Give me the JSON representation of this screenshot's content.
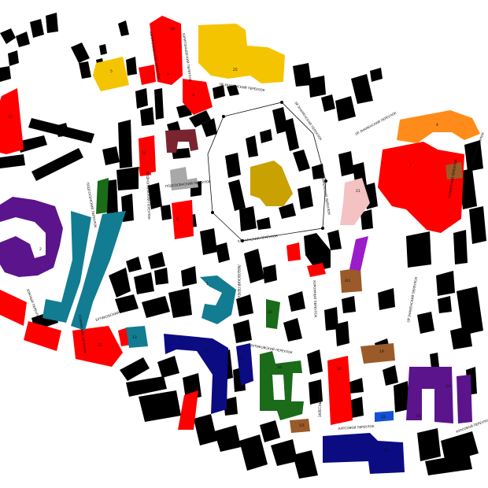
{
  "colors": {
    "residential": "#000000",
    "red": "#ff0000",
    "yellow": "#f5c400",
    "purple": "#5b148c",
    "teal": "#127c92",
    "navy": "#0b0b82",
    "green": "#1a6b1a",
    "orange": "#ff8c1a",
    "brown": "#9a5a2a",
    "maroon": "#7a2430",
    "gold": "#c9a100",
    "gray": "#a8a8a8",
    "pink": "#f4c2c2",
    "violet": "#9b1cc9",
    "blue": "#1450d2"
  },
  "streets": {
    "s1": "ХАРИТОНЬЕВСКИЙ ПЕРЕУЛОК",
    "s2": "ХАРИТОНЬЕВСКИЙ ПЕРЕУЛОК",
    "s3": "3Й ЗНАМЕНСКИЙ ПЕРЕУЛОК",
    "s4": "3Й ЗНАМЕНСКИЙ ПЕРЕУЛОК",
    "s5": "2Й ЗНАМЕНСКИЙ ПЕРЕУЛОК",
    "s6": "ЗНАМЕНСКИЙ ПЕРЕУЛОК",
    "s7": "ПОДКОПАЕВСКИЙ ПЕРЕУЛОК",
    "s8": "ПОДСОСЕНСКИЙ ПЕРЕУЛОК",
    "s9": "ПОДСОСЕНСКИЙ ПЕРЕУЛОК",
    "s10": "ЛЮБОВСКИЙ ПЕРЕУЛОК",
    "s11": "ХАРЧИНСКИЙ ПЕРЕУЛОК",
    "s12": "ХОРОМНЫЙ ПЕРЕУЛОК",
    "s13": "2Й ЗНАМЕНСКИЙ ПЕРЕУЛОК",
    "s14": "БУТИКОВСКИЙ ПЕРЕУЛОК",
    "s15": "СОФИЙСКИЙ ПЕРЕУЛОК",
    "s16": "БУТИКОВСКИЙ ПЕРЕУЛОК",
    "s17": "ЮЖНЫЙ ПЕРЕУЛОК",
    "s18": "КУРСОВОЙ ПЕРЕУЛОК",
    "s19": "КУРСОВОЙ ПЕРЕУЛОК",
    "s20": "ПОЖАРСКИЙ ПЕРЕУЛОК",
    "s21": "ПОЖАРСКИЙ ПЕРЕУЛОК",
    "s22": "ЗАЛЕСНЫЙ ПЕРЕУЛОК"
  },
  "labels": {
    "b1": "25",
    "b2": "5",
    "b3": "12",
    "b4": "18",
    "b5": "9",
    "b6": "3",
    "b7": "14",
    "b8": "17",
    "b9": "4",
    "b10": "7",
    "b11": "21",
    "b12": "8",
    "b13": "2",
    "b14": "1",
    "b15": "11",
    "b16": "6",
    "b17": "10",
    "b18": "13",
    "b19": "15",
    "b20": "16",
    "b21": "19",
    "b22": "4/1",
    "b23": "5/1",
    "b24": "20",
    "b25": "22",
    "b26": "2/4",
    "b27": "5/2",
    "b28": "24"
  }
}
